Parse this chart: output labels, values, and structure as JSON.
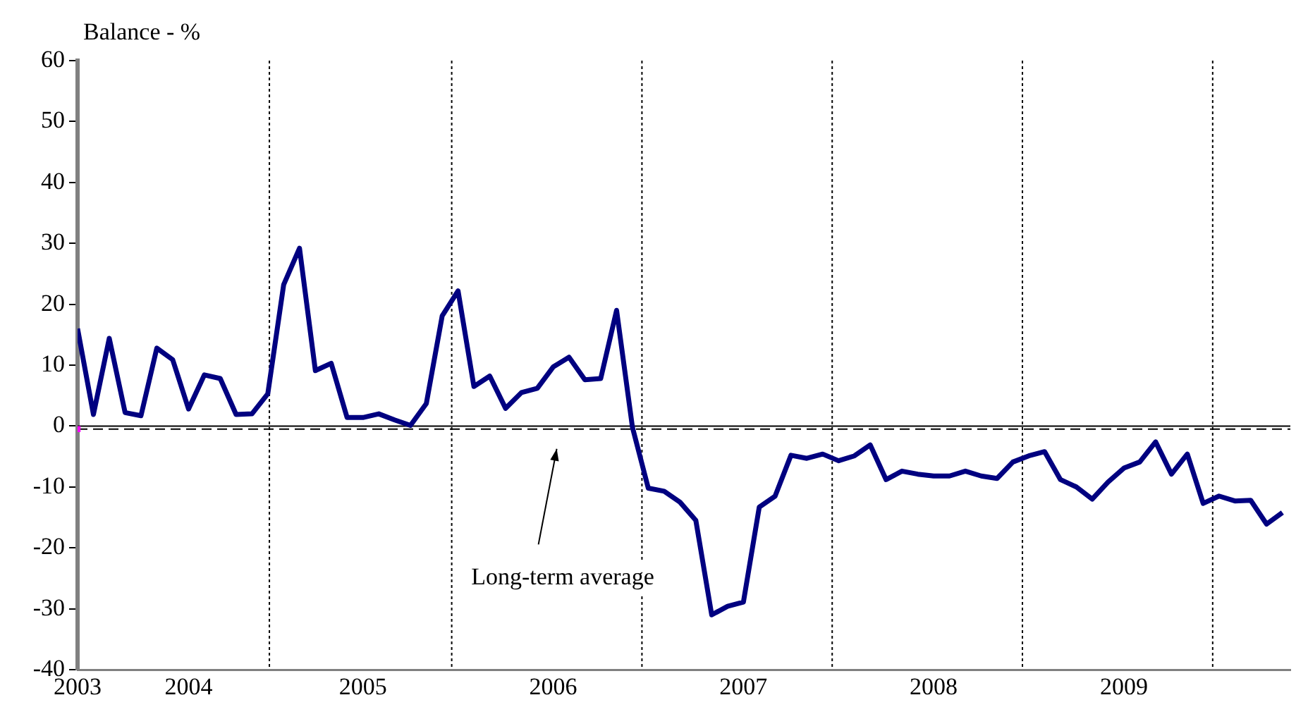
{
  "chart_data": {
    "type": "line",
    "ylabel": "Balance - %",
    "categories": [
      "2003",
      null,
      null,
      null,
      null,
      null,
      null,
      "2004",
      null,
      null,
      null,
      null,
      null,
      null,
      null,
      null,
      null,
      null,
      "2005",
      null,
      null,
      null,
      null,
      null,
      null,
      null,
      null,
      null,
      null,
      null,
      "2006",
      null,
      null,
      null,
      null,
      null,
      null,
      null,
      null,
      null,
      null,
      null,
      "2007",
      null,
      null,
      null,
      null,
      null,
      null,
      null,
      null,
      null,
      null,
      null,
      "2008",
      null,
      null,
      null,
      null,
      null,
      null,
      null,
      null,
      null,
      null,
      null,
      "2009",
      null,
      null,
      null,
      null,
      null,
      null,
      null,
      null,
      null,
      null
    ],
    "series": [
      {
        "color": "#000080",
        "values": [
          16.0,
          1.9,
          14.4,
          2.2,
          1.7,
          12.8,
          10.9,
          2.8,
          8.4,
          7.8,
          1.9,
          2.0,
          5.3,
          23.2,
          29.2,
          9.1,
          10.3,
          1.4,
          1.4,
          2.0,
          1.0,
          0.1,
          3.7,
          18.1,
          22.2,
          6.5,
          8.2,
          2.9,
          5.5,
          6.2,
          9.7,
          11.3,
          7.6,
          7.8,
          19.0,
          -0.2,
          -10.2,
          -10.7,
          -12.5,
          -15.5,
          -31.0,
          -29.6,
          -28.9,
          -13.3,
          -11.5,
          -4.8,
          -5.3,
          -4.6,
          -5.7,
          -4.9,
          -3.1,
          -8.8,
          -7.4,
          -7.9,
          -8.2,
          -8.2,
          -7.4,
          -8.2,
          -8.6,
          -5.9,
          -4.9,
          -4.2,
          -8.8,
          -10.0,
          -12.0,
          -9.2,
          -6.9,
          -5.9,
          -2.6,
          -7.9,
          -4.6,
          -12.7,
          -11.5,
          -12.3,
          -12.2,
          -16.1,
          -14.2
        ]
      },
      {
        "type": "scatter",
        "marker": "square",
        "color": "#ff00ff",
        "values": [
          -0.5,
          null,
          null,
          null,
          null,
          null,
          null,
          null,
          null,
          null,
          null,
          null,
          null,
          null,
          null,
          null,
          null,
          null,
          null,
          null,
          null,
          null,
          null,
          null,
          null,
          null,
          null,
          null,
          null,
          null,
          null,
          null,
          null,
          null,
          null,
          null,
          null,
          null,
          null,
          null,
          null,
          null,
          null,
          null,
          null,
          null,
          null,
          null,
          null,
          null,
          null,
          null,
          null,
          null,
          null,
          null,
          null,
          null,
          null,
          null,
          null,
          null,
          null,
          null,
          null,
          null,
          null,
          null,
          null,
          null,
          null,
          null,
          null,
          null,
          null,
          null,
          null
        ]
      }
    ],
    "ylim": [
      -40,
      60
    ],
    "yticks": [
      -40,
      -30,
      -20,
      -10,
      0,
      10,
      20,
      30,
      40,
      50,
      60
    ],
    "grid": false,
    "legend": false,
    "marker": "none",
    "line_style": "solid",
    "ref_lines": [
      {
        "axis": "y",
        "value": 0,
        "color": "#000000",
        "line_style": "solid"
      },
      {
        "axis": "y",
        "value": -0.5,
        "color": "#000000",
        "line_style": "dashed"
      }
    ],
    "annotations": [
      "Long-term average"
    ]
  }
}
